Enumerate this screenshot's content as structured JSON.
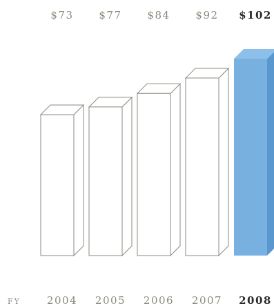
{
  "chart_data": {
    "type": "bar",
    "title": "",
    "xlabel": "FY",
    "ylabel": "",
    "categories": [
      "2004",
      "2005",
      "2006",
      "2007",
      "2008"
    ],
    "values": [
      73,
      77,
      84,
      92,
      102
    ],
    "value_labels": [
      "$73",
      "$77",
      "$84",
      "$92",
      "$102"
    ],
    "highlight_index": 4,
    "ylim": [
      0,
      102
    ],
    "grid": false,
    "legend": "none",
    "bar_style": "3d-box",
    "colors": {
      "bar_face": "#ffffff",
      "bar_stroke": "#8c8a80",
      "highlight_face": "#78b0e0",
      "highlight_side": "#5a97cf",
      "highlight_top": "#8cc0ea",
      "label_muted": "#8a887c",
      "label_emphasis": "#2a2a2a"
    }
  }
}
